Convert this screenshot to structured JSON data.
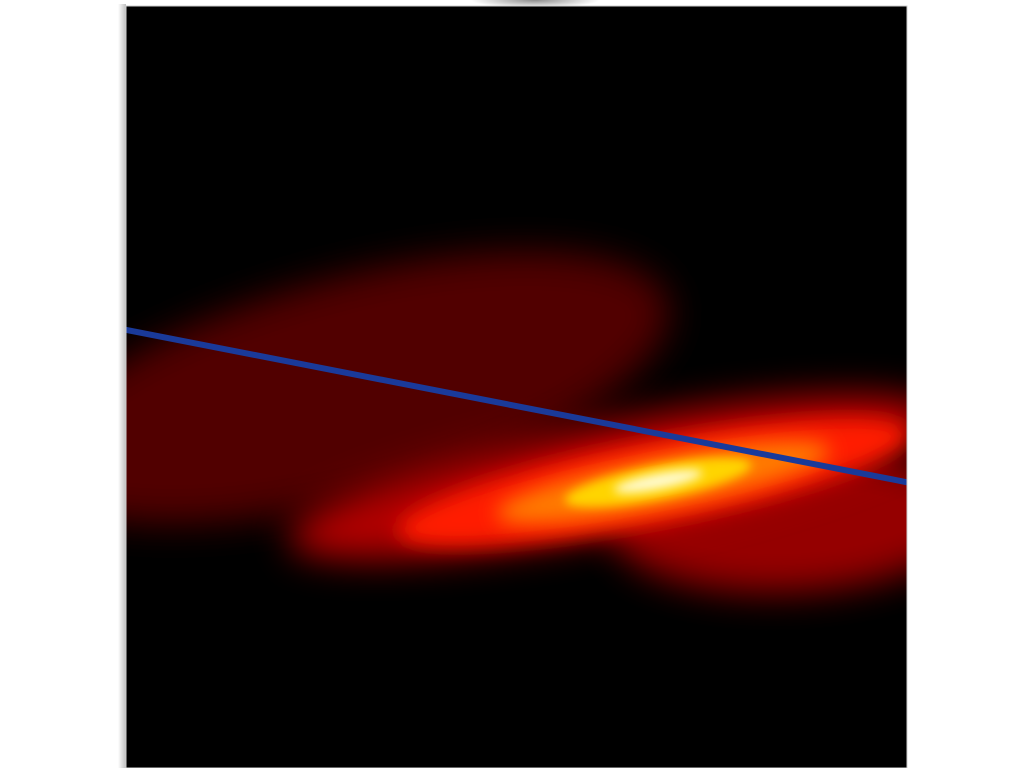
{
  "chart_data": {
    "type": "heatmap",
    "title": "",
    "xlabel": "",
    "ylabel": "",
    "xlim": [
      -1,
      1
    ],
    "ylim": [
      -1,
      1
    ],
    "grid": false,
    "colormap": [
      "#000000",
      "#5a0000",
      "#b00000",
      "#ff1a00",
      "#ff7a00",
      "#ffd400",
      "#fffbd0",
      "#ffffff"
    ],
    "density": {
      "peak": [
        0.35,
        -0.25
      ],
      "peak_value": 1.0,
      "orientation_deg": -11,
      "spread_major": 0.55,
      "spread_minor": 0.07,
      "flare_toward": [
        -1,
        0.3
      ]
    },
    "series": [
      {
        "type": "line",
        "color": "#1a3a9a",
        "x": [
          -1,
          1
        ],
        "y": [
          0.15,
          -0.25
        ]
      }
    ]
  }
}
